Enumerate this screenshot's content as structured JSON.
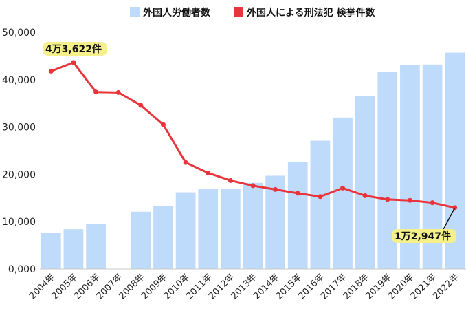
{
  "chart_data": {
    "type": "bar+line",
    "categories": [
      "2004年",
      "2005年",
      "2006年",
      "2007年",
      "2008年",
      "2009年",
      "2010年",
      "2011年",
      "2012年",
      "2013年",
      "2014年",
      "2015年",
      "2016年",
      "2017年",
      "2018年",
      "2019年",
      "2020年",
      "2021年",
      "2022年"
    ],
    "series": [
      {
        "name": "外国人労働者数",
        "type": "bar",
        "color": "#bfdbfc",
        "values": [
          7700,
          8400,
          9600,
          null,
          12100,
          13300,
          16200,
          17000,
          16900,
          18200,
          19700,
          22600,
          27100,
          32000,
          36500,
          41600,
          43100,
          43200,
          45700
        ]
      },
      {
        "name": "外国人による刑法犯 検挙件数",
        "type": "line",
        "color": "#e8343a",
        "values": [
          41800,
          43622,
          37400,
          37300,
          34600,
          30500,
          22500,
          20300,
          18700,
          17600,
          16800,
          16000,
          15300,
          17100,
          15500,
          14700,
          14500,
          14000,
          12947
        ]
      }
    ],
    "yticks": [
      "0,000",
      "10,000",
      "20,000",
      "30,000",
      "40,000",
      "50,000"
    ],
    "ylim": [
      0,
      50000
    ],
    "grid": false,
    "legend": "top",
    "annotations": [
      {
        "text": "4万3,622件",
        "highlight": "#f5f08a",
        "series": 1,
        "index": 1
      },
      {
        "text": "1万2,947件",
        "highlight": "#f5f08a",
        "series": 1,
        "index": 18
      }
    ]
  }
}
